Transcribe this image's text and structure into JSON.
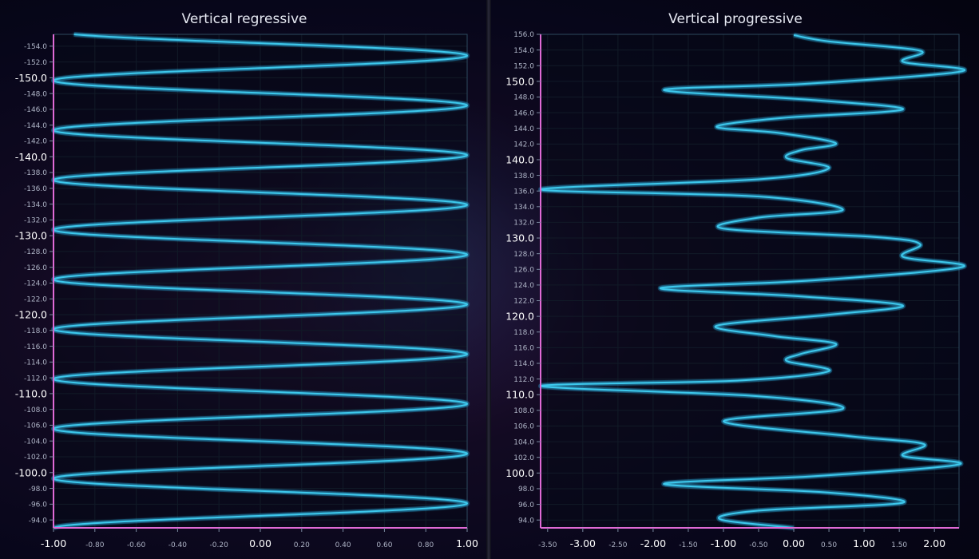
{
  "colors": {
    "series": "#3ec8ec",
    "glow": "#1a90c8",
    "axis": "#e06ad6",
    "grid": "#1f2f3c",
    "frame": "#2d4a5e"
  },
  "chart_data": [
    {
      "type": "line",
      "title": "Vertical regressive",
      "orientation": "vertical",
      "x_axis": {
        "min": -1.0,
        "max": 1.0,
        "ticks": [
          "-1.00",
          "-0.80",
          "-0.60",
          "-0.40",
          "-0.20",
          "0.00",
          "0.20",
          "0.40",
          "0.60",
          "0.80",
          "1.00"
        ],
        "major_ticks": [
          "-1.00",
          "0.00",
          "1.00"
        ]
      },
      "y_axis": {
        "min": -155.5,
        "max": -93.0,
        "reversed": true,
        "ticks": [
          "-154.0",
          "-152.0",
          "-150.0",
          "-148.0",
          "-146.0",
          "-144.0",
          "-142.0",
          "-140.0",
          "-138.0",
          "-136.0",
          "-134.0",
          "-132.0",
          "-130.0",
          "-128.0",
          "-126.0",
          "-124.0",
          "-122.0",
          "-120.0",
          "-118.0",
          "-116.0",
          "-114.0",
          "-112.0",
          "-110.0",
          "-108.0",
          "-106.0",
          "-104.0",
          "-102.0",
          "-100.0",
          "-98.0",
          "-96.0",
          "-94.0"
        ],
        "major_ticks": [
          "-150.0",
          "-140.0",
          "-130.0",
          "-120.0",
          "-110.0",
          "-100.0"
        ]
      },
      "series": [
        {
          "function": "sine",
          "amplitude": 1.0,
          "period": 6.3,
          "y_at_max": -96.1,
          "y_start": -155.5,
          "y_end": -93.0
        }
      ]
    },
    {
      "type": "line",
      "title": "Vertical progressive",
      "orientation": "vertical",
      "x_axis": {
        "min": -3.6,
        "max": 2.35,
        "ticks": [
          "-3.50",
          "-3.00",
          "-2.50",
          "-2.00",
          "-1.50",
          "-1.00",
          "-0.50",
          "0.00",
          "0.50",
          "1.00",
          "1.50",
          "2.00"
        ],
        "major_ticks": [
          "-3.00",
          "-2.00",
          "-1.00",
          "0.00",
          "1.00",
          "2.00"
        ]
      },
      "y_axis": {
        "min": 93.0,
        "max": 156.0,
        "reversed": false,
        "ticks": [
          "94.0",
          "96.0",
          "98.0",
          "100.0",
          "102.0",
          "104.0",
          "106.0",
          "108.0",
          "110.0",
          "112.0",
          "114.0",
          "116.0",
          "118.0",
          "120.0",
          "122.0",
          "124.0",
          "126.0",
          "128.0",
          "130.0",
          "132.0",
          "134.0",
          "136.0",
          "138.0",
          "140.0",
          "142.0",
          "144.0",
          "146.0",
          "148.0",
          "150.0",
          "152.0",
          "154.0",
          "156.0"
        ],
        "major_ticks": [
          "100.0",
          "110.0",
          "120.0",
          "130.0",
          "140.0",
          "150.0"
        ]
      },
      "series": [
        {
          "points": [
            [
              0.0,
              93.0
            ],
            [
              -1.05,
              94.1
            ],
            [
              -0.5,
              95.2
            ],
            [
              1.55,
              96.2
            ],
            [
              0.5,
              97.5
            ],
            [
              -1.85,
              98.6
            ],
            [
              0.3,
              99.6
            ],
            [
              2.35,
              101.1
            ],
            [
              1.55,
              102.2
            ],
            [
              1.85,
              103.7
            ],
            [
              0.8,
              104.7
            ],
            [
              -1.0,
              106.6
            ],
            [
              0.7,
              108.2
            ],
            [
              -0.5,
              109.8
            ],
            [
              -3.6,
              111.1
            ],
            [
              -0.8,
              111.8
            ],
            [
              0.5,
              113.0
            ],
            [
              -0.1,
              114.3
            ],
            [
              0.1,
              115.2
            ],
            [
              0.6,
              116.5
            ],
            [
              -0.3,
              117.5
            ],
            [
              -1.1,
              118.8
            ],
            [
              0.5,
              120.2
            ],
            [
              1.55,
              121.4
            ],
            [
              0.0,
              122.6
            ],
            [
              -1.9,
              123.6
            ],
            [
              0.3,
              124.6
            ],
            [
              2.4,
              126.3
            ],
            [
              1.55,
              127.6
            ],
            [
              1.8,
              129.2
            ],
            [
              1.2,
              130.1
            ],
            [
              -1.0,
              131.2
            ],
            [
              -0.5,
              132.6
            ],
            [
              0.7,
              133.6
            ],
            [
              -0.5,
              135.3
            ],
            [
              -3.6,
              136.2
            ],
            [
              -0.5,
              137.5
            ],
            [
              0.5,
              138.9
            ],
            [
              -0.1,
              140.2
            ],
            [
              0.1,
              141.2
            ],
            [
              0.6,
              142.1
            ],
            [
              -0.2,
              143.4
            ],
            [
              -1.1,
              144.2
            ],
            [
              -0.2,
              145.3
            ],
            [
              1.55,
              146.4
            ],
            [
              0.3,
              147.6
            ],
            [
              -1.85,
              148.9
            ],
            [
              0.2,
              149.7
            ],
            [
              2.4,
              151.3
            ],
            [
              1.55,
              152.5
            ],
            [
              1.8,
              153.9
            ],
            [
              0.5,
              155.1
            ],
            [
              0.0,
              155.9
            ]
          ]
        }
      ]
    }
  ]
}
